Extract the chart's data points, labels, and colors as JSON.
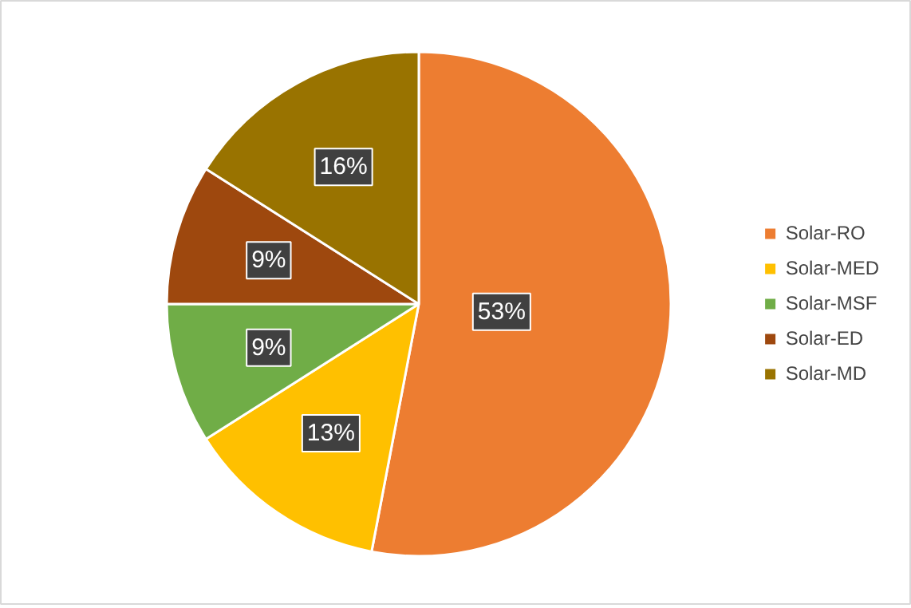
{
  "chart_data": {
    "type": "pie",
    "categories": [
      "Solar-RO",
      "Solar-MED",
      "Solar-MSF",
      "Solar-ED",
      "Solar-MD"
    ],
    "values": [
      53,
      13,
      9,
      9,
      16
    ],
    "colors": [
      "#ed7d31",
      "#ffc000",
      "#70ad47",
      "#9e480e",
      "#997300"
    ],
    "value_labels": [
      "53%",
      "13%",
      "9%",
      "9%",
      "16%"
    ],
    "legend": "right"
  }
}
